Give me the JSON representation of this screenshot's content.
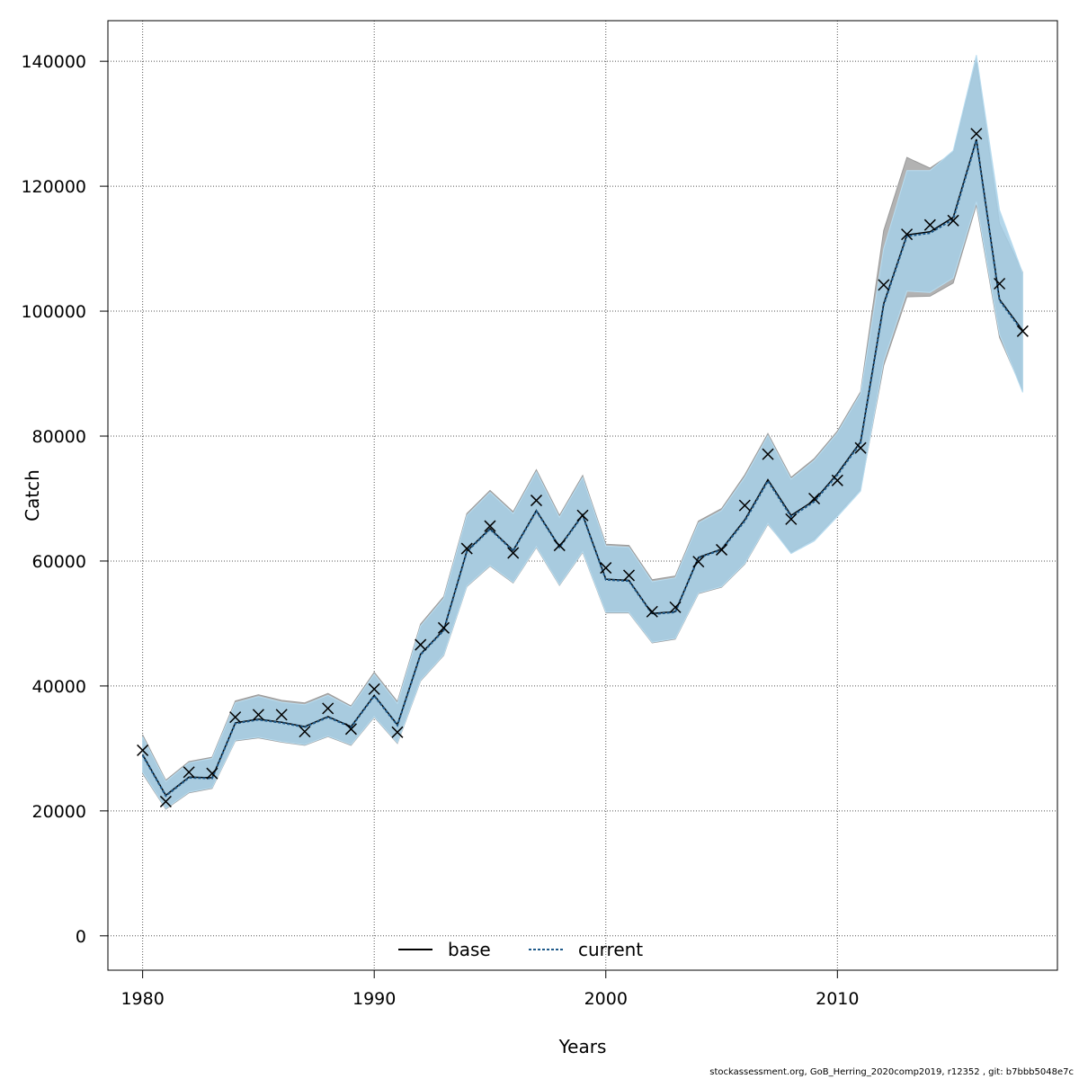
{
  "chart_data": {
    "type": "line",
    "xlabel": "Years",
    "ylabel": "Catch",
    "xlim": [
      1978.5,
      2019.5
    ],
    "ylim": [
      -5500,
      146500
    ],
    "x_ticks": [
      1980,
      1990,
      2000,
      2010
    ],
    "y_ticks": [
      0,
      20000,
      40000,
      60000,
      80000,
      100000,
      120000,
      140000
    ],
    "y_tick_labels": [
      "0",
      "20000",
      "40000",
      "60000",
      "80000",
      "100000",
      "120000",
      "140000"
    ],
    "grid": true,
    "legend_position": "bottom-center",
    "years": [
      1980,
      1981,
      1982,
      1983,
      1984,
      1985,
      1986,
      1987,
      1988,
      1989,
      1990,
      1991,
      1992,
      1993,
      1994,
      1995,
      1996,
      1997,
      1998,
      1999,
      2000,
      2001,
      2002,
      2003,
      2004,
      2005,
      2006,
      2007,
      2008,
      2009,
      2010,
      2011,
      2012,
      2013,
      2014,
      2015,
      2016,
      2017,
      2018
    ],
    "observed": [
      29700,
      21500,
      26200,
      26000,
      35000,
      35400,
      35400,
      32700,
      36400,
      33100,
      39500,
      32600,
      46600,
      49300,
      62000,
      65600,
      61300,
      69700,
      62500,
      67300,
      58900,
      57700,
      51900,
      52600,
      59900,
      61800,
      68900,
      77100,
      66700,
      70000,
      72900,
      78100,
      104200,
      112300,
      113800,
      114500,
      128400,
      104400,
      96800
    ],
    "series": [
      {
        "name": "base",
        "color": "#000000",
        "values": [
          29000,
          22500,
          25400,
          25300,
          34100,
          34700,
          34200,
          33500,
          35100,
          33500,
          38500,
          33800,
          45100,
          49000,
          61600,
          65200,
          61700,
          68100,
          62300,
          67400,
          57100,
          56900,
          51600,
          51900,
          60600,
          61900,
          66600,
          73000,
          67300,
          69700,
          74000,
          79100,
          101200,
          112200,
          112700,
          115000,
          127500,
          101900,
          96900
        ],
        "lower": [
          26000,
          20300,
          22900,
          23600,
          31200,
          31700,
          31000,
          30500,
          31900,
          30500,
          35000,
          30800,
          40800,
          44900,
          55900,
          59200,
          56500,
          62200,
          56100,
          61400,
          51700,
          51700,
          46900,
          47500,
          54800,
          55800,
          59500,
          65900,
          61400,
          63500,
          67400,
          71500,
          91300,
          102300,
          102400,
          104500,
          117000,
          95800,
          87300
        ],
        "upper": [
          32200,
          24900,
          27900,
          28600,
          37600,
          38600,
          37700,
          37300,
          38800,
          36800,
          42200,
          37500,
          49900,
          54300,
          67600,
          71300,
          67900,
          74600,
          67300,
          73700,
          62700,
          62500,
          57000,
          57600,
          66400,
          68400,
          73800,
          80400,
          73400,
          76400,
          80800,
          87100,
          112900,
          124600,
          122900,
          125400,
          140100,
          114000,
          106200
        ]
      },
      {
        "name": "current",
        "color": "#1f5a8a",
        "values": [
          28900,
          22400,
          25300,
          25200,
          34000,
          34600,
          34100,
          33400,
          35000,
          33400,
          38400,
          33700,
          45000,
          48900,
          61500,
          65100,
          61600,
          68000,
          62200,
          67300,
          57000,
          56800,
          51500,
          51800,
          60500,
          61800,
          66400,
          72800,
          67100,
          69500,
          73800,
          78900,
          101000,
          112000,
          112500,
          114700,
          127300,
          101700,
          96700
        ],
        "lower": [
          26200,
          20400,
          23000,
          23700,
          31300,
          31800,
          31100,
          30600,
          32000,
          30600,
          35100,
          30900,
          40900,
          45000,
          56000,
          59300,
          56600,
          62300,
          56200,
          61500,
          51800,
          51800,
          47000,
          47600,
          54900,
          55900,
          59600,
          66000,
          61200,
          63200,
          67100,
          71200,
          92000,
          103200,
          103000,
          105300,
          117500,
          96300,
          87000
        ],
        "upper": [
          31900,
          24700,
          27700,
          28400,
          37300,
          38300,
          37400,
          37000,
          38500,
          36600,
          41900,
          37200,
          49600,
          54000,
          67300,
          71000,
          67600,
          74300,
          67000,
          73400,
          62400,
          62200,
          56700,
          57300,
          66100,
          68100,
          73400,
          80100,
          73100,
          76100,
          80500,
          86800,
          110000,
          122500,
          122500,
          125700,
          141000,
          116200,
          106100
        ]
      }
    ]
  },
  "legend": {
    "base_label": "base",
    "current_label": "current"
  },
  "footer": {
    "text": "stockassessment.org, GoB_Herring_2020comp2019, r12352 , git: b7bbb5048e7c"
  },
  "colors": {
    "base_band": "#b2b2b2",
    "current_band": "#a6cfe6",
    "overlap_band": "#9bbfd2",
    "current_line": "#1f5a8a"
  }
}
